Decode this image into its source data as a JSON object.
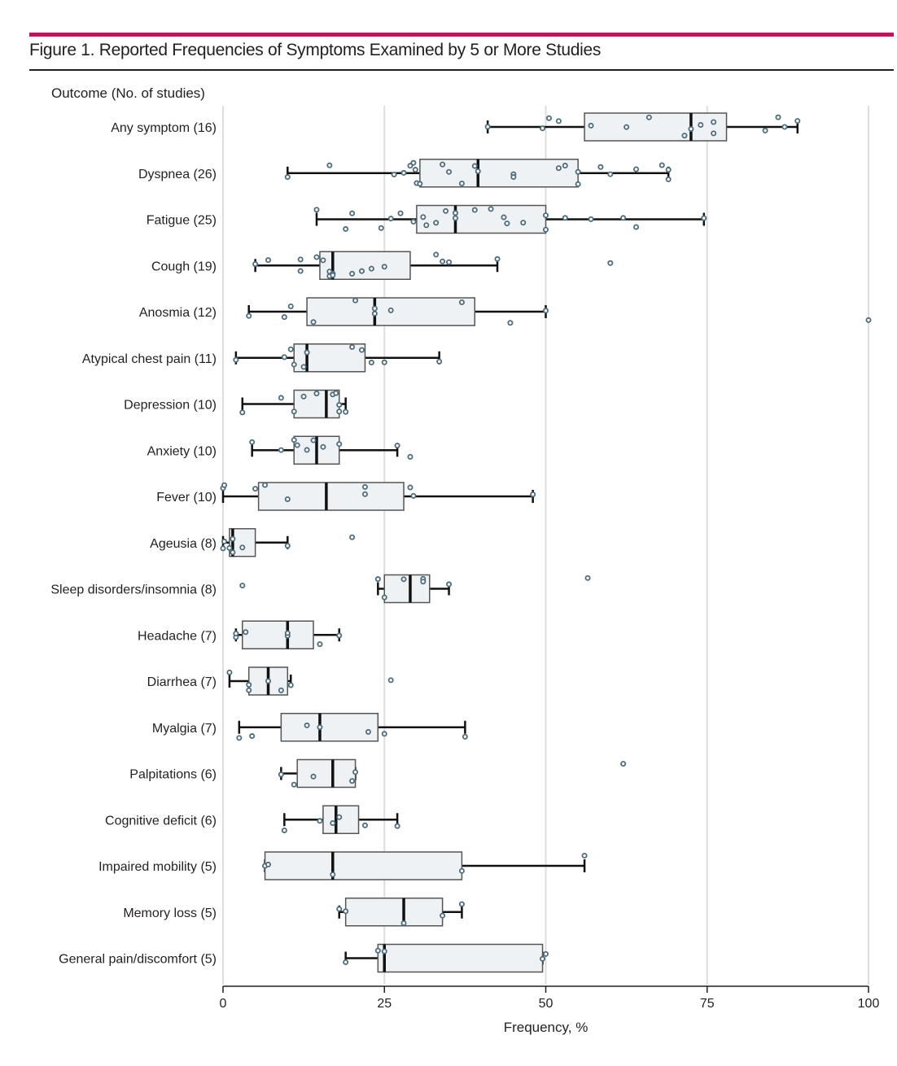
{
  "figure": {
    "title": "Figure 1. Reported Frequencies of Symptoms Examined by 5 or More Studies",
    "accent_color": "#c4125c"
  },
  "chart_data": {
    "type": "boxplot",
    "orientation": "horizontal",
    "title": "Figure 1. Reported Frequencies of Symptoms Examined by 5 or More Studies",
    "ylabel": "Outcome (No. of studies)",
    "xlabel": "Frequency, %",
    "xlim": [
      0,
      100
    ],
    "xticks": [
      0,
      25,
      50,
      75,
      100
    ],
    "grid": true,
    "colors": {
      "box_fill": "#eef2f5",
      "box_stroke": "#555555",
      "median": "#111111",
      "point": "#4d6b7b",
      "grid": "#dddddd"
    },
    "categories": [
      {
        "label": "Any symptom (16)",
        "min": 41,
        "q1": 56,
        "median": 72.5,
        "q3": 78,
        "max": 89,
        "points": [
          41,
          49.5,
          50.5,
          52,
          57,
          62.5,
          66,
          71.5,
          72.5,
          74,
          76,
          76,
          84,
          86,
          87,
          89
        ]
      },
      {
        "label": "Dyspnea (26)",
        "min": 10,
        "q1": 30.5,
        "median": 39.5,
        "q3": 55,
        "max": 69,
        "points": [
          10,
          16.5,
          26.5,
          28,
          29,
          29.5,
          30,
          30.5,
          34,
          35,
          37,
          39,
          39.5,
          45,
          45,
          52,
          53,
          55,
          55,
          58.5,
          60,
          64,
          68,
          69,
          69,
          29.8
        ]
      },
      {
        "label": "Fatigue (25)",
        "min": 14.5,
        "q1": 30,
        "median": 36,
        "q3": 50,
        "max": 74.5,
        "points": [
          14.5,
          19,
          20,
          24.5,
          26,
          27.5,
          29.5,
          31,
          31.5,
          33,
          34.5,
          36,
          36,
          39,
          41.5,
          43.5,
          44,
          46.5,
          50,
          50,
          53,
          57,
          62,
          64,
          74.5
        ]
      },
      {
        "label": "Cough (19)",
        "min": 5,
        "q1": 15,
        "median": 17,
        "q3": 29,
        "max": 42.5,
        "points": [
          5,
          7,
          12,
          12,
          14.5,
          15.5,
          16.5,
          17,
          16.5,
          17,
          20,
          21.5,
          23,
          25,
          33,
          34,
          35,
          42.5,
          60
        ]
      },
      {
        "label": "Anosmia (12)",
        "min": 4,
        "q1": 13,
        "median": 23.5,
        "q3": 39,
        "max": 50,
        "points": [
          4,
          9.5,
          10.5,
          14,
          20.5,
          23.5,
          23.5,
          26,
          37,
          44.5,
          50,
          100
        ]
      },
      {
        "label": "Atypical chest pain (11)",
        "min": 2,
        "q1": 11,
        "median": 13,
        "q3": 22,
        "max": 33.5,
        "points": [
          2,
          9.5,
          10.5,
          11,
          12.5,
          13,
          20,
          21.5,
          23,
          25,
          33.5
        ]
      },
      {
        "label": "Depression (10)",
        "min": 3,
        "q1": 11,
        "median": 16,
        "q3": 18,
        "max": 19,
        "points": [
          3,
          9,
          11,
          12.5,
          14.5,
          17,
          17.5,
          18,
          18,
          19
        ]
      },
      {
        "label": "Anxiety (10)",
        "min": 4.5,
        "q1": 11,
        "median": 14.5,
        "q3": 18,
        "max": 27,
        "points": [
          4.5,
          9,
          11,
          11.5,
          13,
          14,
          15.5,
          18,
          27,
          29
        ]
      },
      {
        "label": "Fever (10)",
        "min": 0,
        "q1": 5.5,
        "median": 16,
        "q3": 28,
        "max": 48,
        "points": [
          0,
          5,
          6.5,
          10,
          22,
          22,
          29,
          29.5,
          48,
          0.2
        ]
      },
      {
        "label": "Ageusia (8)",
        "min": 0,
        "q1": 1,
        "median": 1.5,
        "q3": 5,
        "max": 10,
        "points": [
          0,
          0.2,
          1,
          1.5,
          1.5,
          3,
          10,
          20
        ]
      },
      {
        "label": "Sleep disorders/insomnia (8)",
        "min": 24,
        "q1": 25,
        "median": 29,
        "q3": 32,
        "max": 35,
        "points": [
          3,
          24,
          25,
          28,
          31,
          31,
          35,
          56.5
        ]
      },
      {
        "label": "Headache (7)",
        "min": 2,
        "q1": 3,
        "median": 10,
        "q3": 14,
        "max": 18,
        "points": [
          2,
          2,
          3.5,
          10,
          15,
          18,
          10
        ]
      },
      {
        "label": "Diarrhea (7)",
        "min": 1,
        "q1": 4,
        "median": 7,
        "q3": 10,
        "max": 10.5,
        "points": [
          1,
          4,
          4,
          7,
          9,
          10.5,
          26
        ]
      },
      {
        "label": "Myalgia (7)",
        "min": 2.5,
        "q1": 9,
        "median": 15,
        "q3": 24,
        "max": 37.5,
        "points": [
          2.5,
          4.5,
          13,
          15,
          22.5,
          25,
          37.5
        ]
      },
      {
        "label": "Palpitations (6)",
        "min": 9,
        "q1": 11.5,
        "median": 17,
        "q3": 20.5,
        "max": 20.5,
        "points": [
          9,
          11,
          14,
          20,
          20.5,
          62
        ]
      },
      {
        "label": "Cognitive deficit (6)",
        "min": 9.5,
        "q1": 15.5,
        "median": 17.5,
        "q3": 21,
        "max": 27,
        "points": [
          9.5,
          15,
          17,
          18,
          22,
          27
        ]
      },
      {
        "label": "Impaired mobility (5)",
        "min": 6.5,
        "q1": 6.5,
        "median": 17,
        "q3": 37,
        "max": 56,
        "points": [
          6.5,
          7,
          17,
          37,
          56
        ]
      },
      {
        "label": "Memory loss (5)",
        "min": 18,
        "q1": 19,
        "median": 28,
        "q3": 34,
        "max": 37,
        "points": [
          18,
          19,
          28,
          34,
          37
        ]
      },
      {
        "label": "General pain/discomfort (5)",
        "min": 19,
        "q1": 24,
        "median": 25,
        "q3": 49.5,
        "max": 49.5,
        "points": [
          19,
          24,
          25,
          49.5,
          50
        ]
      }
    ]
  }
}
